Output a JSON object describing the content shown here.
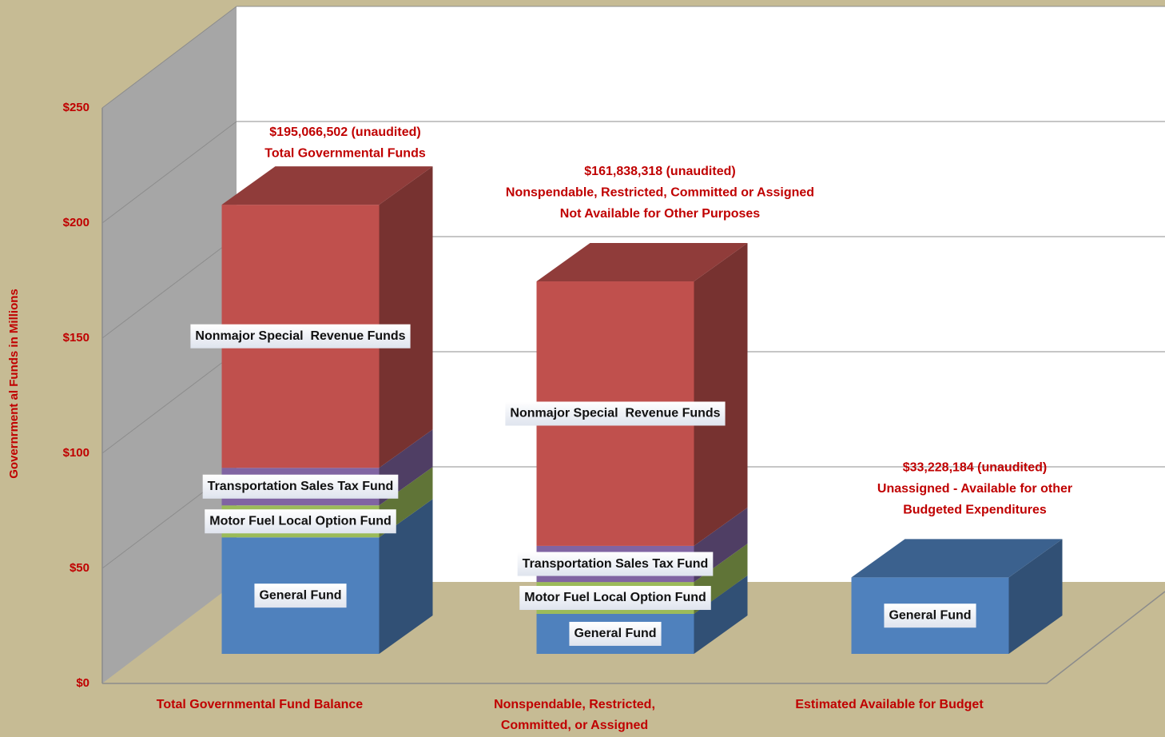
{
  "chart_data": {
    "type": "bar",
    "stacked": true,
    "y_label": "Governrment al Funds in Millions",
    "categories": [
      "Total Governmental Fund Balance",
      "Nonspendable, Restricted, Committed, or Assigned",
      "Estimated Available for Budget"
    ],
    "series": [
      {
        "name": "General Fund",
        "color": "#4f81bd",
        "values": [
          50.6,
          17.4,
          33.2
        ]
      },
      {
        "name": "Motor Fuel Local Option Fund",
        "color": "#9bbb59",
        "values": [
          13.9,
          13.8,
          null
        ]
      },
      {
        "name": "Transportation Sales Tax Fund",
        "color": "#8064a2",
        "values": [
          16.3,
          15.7,
          null
        ]
      },
      {
        "name": "Nonmajor Special  Revenue Funds",
        "color": "#c0504d",
        "values": [
          114.3,
          114.9,
          null
        ]
      }
    ],
    "annotations": [
      {
        "lines": [
          "$195,066,502 (unaudited)",
          "Total Governmental Funds"
        ]
      },
      {
        "lines": [
          "$161,838,318 (unaudited)",
          "Nonspendable, Restricted, Committed or Assigned",
          "Not Available for Other Purposes"
        ]
      },
      {
        "lines": [
          "$33,228,184 (unaudited)",
          "Unassigned - Available for other",
          "Budgeted Expenditures"
        ]
      }
    ],
    "ylim": [
      0,
      250
    ],
    "yticks": [
      {
        "value": 0,
        "label": "$0"
      },
      {
        "value": 50,
        "label": "$50"
      },
      {
        "value": 100,
        "label": "$100"
      },
      {
        "value": 150,
        "label": "$150"
      },
      {
        "value": 200,
        "label": "$200"
      },
      {
        "value": 250,
        "label": "$250"
      }
    ],
    "grid": true
  }
}
